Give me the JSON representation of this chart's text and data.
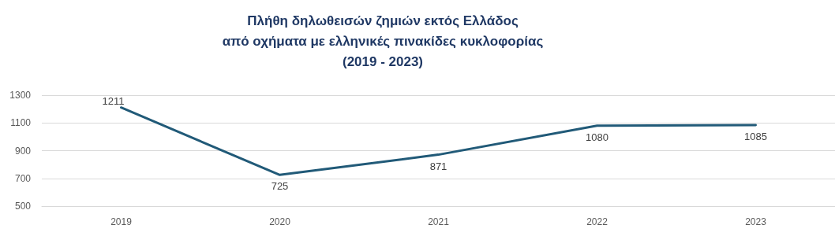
{
  "chart_data": {
    "type": "line",
    "title": "Πλήθη δηλωθεισών ζημιών εκτός Ελλάδος\nαπό οχήματα με ελληνικές πινακίδες κυκλοφορίας\n(2019 - 2023)",
    "categories": [
      "2019",
      "2020",
      "2021",
      "2022",
      "2023"
    ],
    "series": [
      {
        "color": "#215a78",
        "values": [
          1211,
          725,
          871,
          1080,
          1085
        ]
      }
    ],
    "ylim": [
      500,
      1300
    ],
    "yticks": [
      500,
      700,
      900,
      1100,
      1300
    ],
    "grid": "y",
    "data_labels": true,
    "marker": "none",
    "line_style": "solid"
  }
}
